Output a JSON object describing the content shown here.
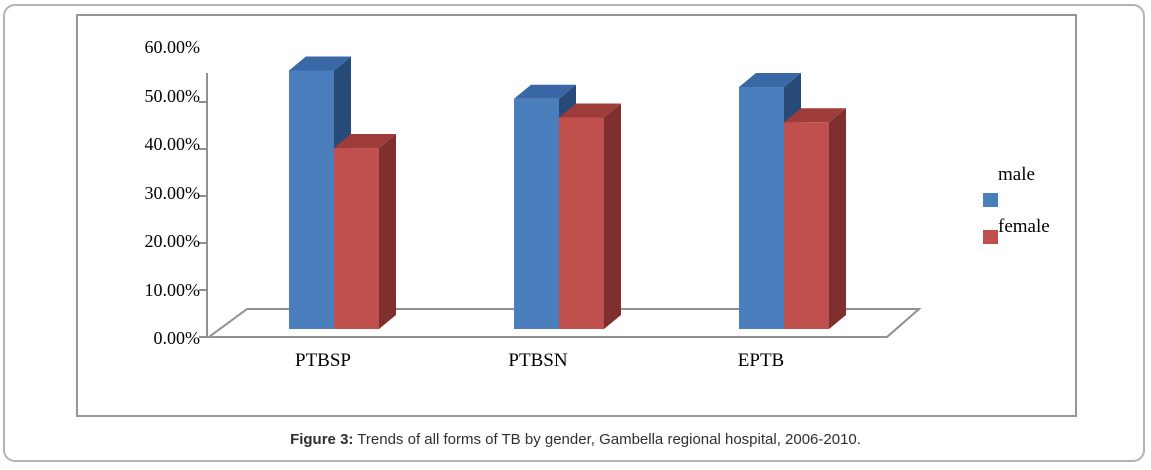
{
  "figure": {
    "caption_label": "Figure 3:",
    "caption_text": " Trends of all forms of TB by gender, Gambella regional hospital, 2006-2010."
  },
  "chart_data": {
    "type": "bar",
    "subtype": "3d-clustered-column",
    "title": "",
    "xlabel": "",
    "ylabel": "",
    "categories": [
      "PTBSP",
      "PTBSN",
      "EPTB"
    ],
    "series": [
      {
        "name": "male",
        "color": "#4a7ebc",
        "values": [
          55,
          49,
          51.5
        ]
      },
      {
        "name": "female",
        "color": "#c0504d",
        "values": [
          38.5,
          45,
          44
        ]
      }
    ],
    "ylim": [
      0,
      60
    ],
    "ytick_step": 10,
    "ytick_labels": [
      "0.00%",
      "10.00%",
      "20.00%",
      "30.00%",
      "40.00%",
      "50.00%",
      "60.00%"
    ],
    "legend_position": "right",
    "grid": false
  },
  "colors": {
    "male_front": "#4a7ebc",
    "male_top": "#3a67a5",
    "male_side": "#274a78",
    "female_front": "#c0504d",
    "female_top": "#9d3c39",
    "female_side": "#7f2f2d",
    "axis_line": "#909090",
    "chart_border": "#969696",
    "outer_border": "#b3b3b3",
    "text": "#000000",
    "caption_text": "#2f2f2f"
  }
}
